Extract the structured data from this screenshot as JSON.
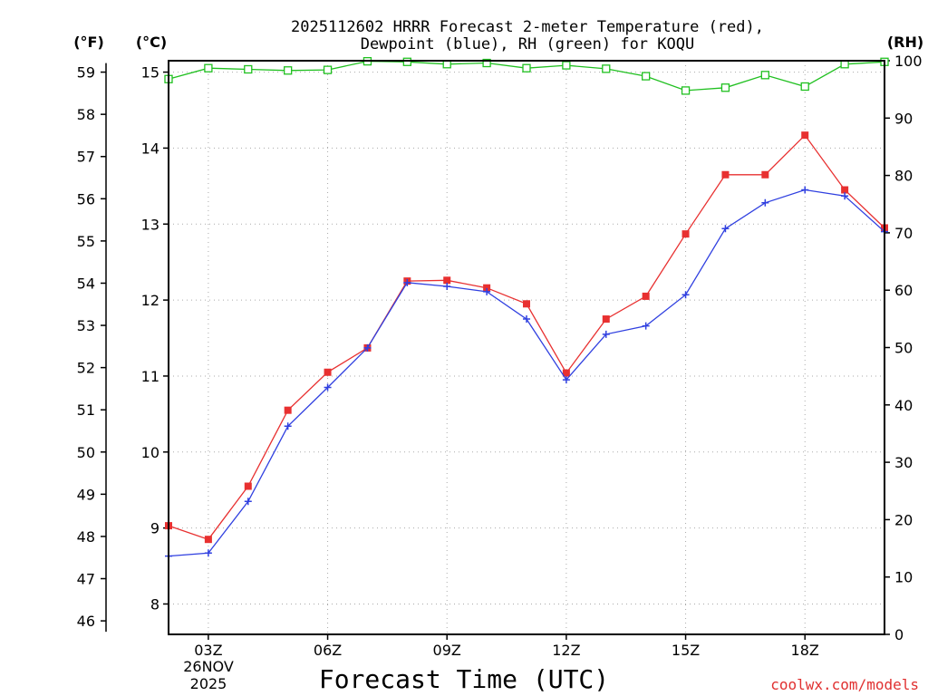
{
  "chart_data": {
    "type": "line",
    "title_line1": "2025112602 HRRR Forecast 2-meter Temperature (red),",
    "title_line2": "Dewpoint (blue), RH (green) for KOQU",
    "xlabel": "Forecast Time (UTC)",
    "credit": "coolwx.com/models",
    "units": {
      "fahrenheit": "(°F)",
      "celsius": "(°C)",
      "rh": "(RH)"
    },
    "date_line1": "26NOV",
    "date_line2": "2025",
    "x_hours": [
      2,
      3,
      4,
      5,
      6,
      7,
      8,
      9,
      10,
      11,
      12,
      13,
      14,
      15,
      16,
      17,
      18,
      19,
      20
    ],
    "x_ticks": [
      {
        "hour": 3,
        "label": "03Z"
      },
      {
        "hour": 6,
        "label": "06Z"
      },
      {
        "hour": 9,
        "label": "09Z"
      },
      {
        "hour": 12,
        "label": "12Z"
      },
      {
        "hour": 15,
        "label": "15Z"
      },
      {
        "hour": 18,
        "label": "18Z"
      }
    ],
    "xlim": [
      2,
      20
    ],
    "celsius_ylim": [
      7.6,
      15.15
    ],
    "celsius_ticks": [
      8,
      9,
      10,
      11,
      12,
      13,
      14,
      15
    ],
    "fahrenheit_ticks": [
      46,
      47,
      48,
      49,
      50,
      51,
      52,
      53,
      54,
      55,
      56,
      57,
      58,
      59
    ],
    "rh_ylim": [
      0,
      100
    ],
    "rh_ticks": [
      0,
      10,
      20,
      30,
      40,
      50,
      60,
      70,
      80,
      90,
      100
    ],
    "series": [
      {
        "name": "Temperature",
        "color": "#e83030",
        "marker": "filled-square",
        "axis": "celsius",
        "values": [
          9.03,
          8.85,
          9.55,
          10.55,
          11.05,
          11.37,
          12.25,
          12.26,
          12.16,
          11.95,
          11.04,
          11.75,
          12.05,
          12.87,
          13.65,
          13.65,
          14.17,
          13.45,
          12.95
        ]
      },
      {
        "name": "Dewpoint",
        "color": "#3040e0",
        "marker": "plus",
        "axis": "celsius",
        "values": [
          8.63,
          8.67,
          9.35,
          10.34,
          10.85,
          11.37,
          12.23,
          12.18,
          12.11,
          11.75,
          10.95,
          11.55,
          11.66,
          12.07,
          12.94,
          13.28,
          13.45,
          13.37,
          12.9
        ]
      },
      {
        "name": "RH",
        "color": "#20c020",
        "marker": "open-square",
        "axis": "rh",
        "values": [
          96.8,
          98.7,
          98.5,
          98.3,
          98.4,
          99.9,
          99.8,
          99.4,
          99.6,
          98.7,
          99.2,
          98.6,
          97.3,
          94.8,
          95.3,
          97.5,
          95.5,
          99.4,
          99.8
        ]
      }
    ]
  }
}
